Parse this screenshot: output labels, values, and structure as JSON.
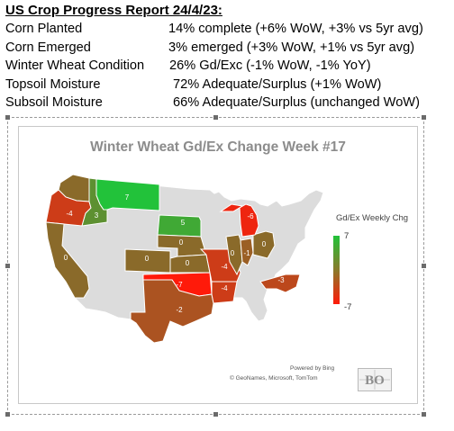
{
  "report": {
    "title": "US Crop Progress Report 24/4/23:",
    "rows": [
      {
        "label": "Corn Planted",
        "value": "14% complete (+6% WoW, +3% vs 5yr avg)"
      },
      {
        "label": "Corn Emerged",
        "value": "3% emerged (+3% WoW, +1% vs 5yr avg)"
      },
      {
        "label": "Winter Wheat Condition",
        "value": "26% Gd/Exc (-1% WoW, -1% YoY)"
      },
      {
        "label": "Topsoil Moisture",
        "value": "72% Adequate/Surplus (+1% WoW)"
      },
      {
        "label": "Subsoil Moisture",
        "value": "66% Adequate/Surplus (unchanged WoW)"
      }
    ]
  },
  "map": {
    "title": "Winter Wheat Gd/Ex Change Week #17",
    "legend": {
      "title": "Gd/Ex Weekly Chg",
      "max_label": "7",
      "min_label": "-7"
    },
    "credits": {
      "line1": "Powered by Bing",
      "line2": "© GeoNames, Microsoft, TomTom"
    },
    "logo_text": "BO",
    "colors": {
      "base": "#dcdcdc",
      "border": "#ffffff",
      "max": "#22c23a",
      "mid": "#8a6a2a",
      "min": "#ff1a0a"
    },
    "states": [
      {
        "name": "Washington",
        "change": 0,
        "label": ""
      },
      {
        "name": "Oregon",
        "change": -4,
        "label": "-4"
      },
      {
        "name": "Idaho",
        "change": 3,
        "label": "3"
      },
      {
        "name": "Montana",
        "change": 7,
        "label": "7"
      },
      {
        "name": "California",
        "change": 0,
        "label": "0"
      },
      {
        "name": "South Dakota",
        "change": 5,
        "label": "5"
      },
      {
        "name": "Nebraska",
        "change": 0,
        "label": "0"
      },
      {
        "name": "Colorado",
        "change": 0,
        "label": "0"
      },
      {
        "name": "Kansas",
        "change": 0,
        "label": "0"
      },
      {
        "name": "Oklahoma",
        "change": -7,
        "label": "-7"
      },
      {
        "name": "Texas",
        "change": -2,
        "label": "-2"
      },
      {
        "name": "Missouri",
        "change": -4,
        "label": "-4"
      },
      {
        "name": "Arkansas",
        "change": -4,
        "label": "-4"
      },
      {
        "name": "Illinois",
        "change": 0,
        "label": "0"
      },
      {
        "name": "Indiana",
        "change": -1,
        "label": "-1"
      },
      {
        "name": "Ohio",
        "change": 0,
        "label": "0"
      },
      {
        "name": "Michigan",
        "change": -6,
        "label": "-6"
      },
      {
        "name": "North Carolina",
        "change": -3,
        "label": "-3"
      }
    ]
  }
}
